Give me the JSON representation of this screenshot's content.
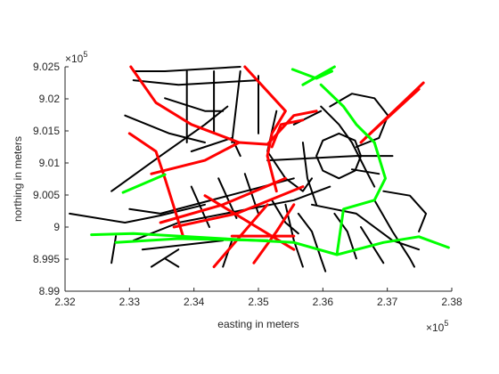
{
  "chart_data": {
    "type": "line",
    "xlabel": "easting in meters",
    "ylabel": "northing in meters",
    "x_exponent": {
      "base": "×10",
      "power": "5"
    },
    "y_exponent": {
      "base": "×10",
      "power": "5"
    },
    "xlim": [
      232000,
      238000
    ],
    "ylim": [
      899000,
      902500
    ],
    "xticks": [
      {
        "value": 232000,
        "label": "2.32"
      },
      {
        "value": 233000,
        "label": "2.33"
      },
      {
        "value": 234000,
        "label": "2.34"
      },
      {
        "value": 235000,
        "label": "2.35"
      },
      {
        "value": 236000,
        "label": "2.36"
      },
      {
        "value": 237000,
        "label": "2.37"
      },
      {
        "value": 238000,
        "label": "2.38"
      }
    ],
    "yticks": [
      {
        "value": 899000,
        "label": "8.99"
      },
      {
        "value": 899500,
        "label": "8.995"
      },
      {
        "value": 900000,
        "label": "9"
      },
      {
        "value": 900500,
        "label": "9.005"
      },
      {
        "value": 901000,
        "label": "9.01"
      },
      {
        "value": 901500,
        "label": "9.015"
      },
      {
        "value": 902000,
        "label": "9.02"
      },
      {
        "value": 902500,
        "label": "9.025"
      }
    ],
    "grid": false,
    "series": [
      {
        "color": "#000000",
        "x": [
          232070,
          232930,
          233480,
          234170
        ],
        "y": [
          900210,
          900070,
          900180,
          900350
        ]
      },
      {
        "color": "#000000",
        "x": [
          232720,
          233480,
          234170,
          234520
        ],
        "y": [
          900560,
          901110,
          901600,
          901880
        ]
      },
      {
        "color": "#000000",
        "x": [
          233550,
          234170,
          234450
        ],
        "y": [
          902010,
          901810,
          901810
        ]
      },
      {
        "color": "#000000",
        "x": [
          233060,
          233550,
          234720
        ],
        "y": [
          902430,
          902430,
          902500
        ]
      },
      {
        "color": "#000000",
        "x": [
          233060,
          233760,
          235000
        ],
        "y": [
          902290,
          902220,
          902290
        ]
      },
      {
        "color": "#000000",
        "x": [
          232930,
          233620,
          234170
        ],
        "y": [
          901740,
          901460,
          901320
        ]
      },
      {
        "color": "#000000",
        "x": [
          233890,
          233890
        ],
        "y": [
          902430,
          901320
        ]
      },
      {
        "color": "#000000",
        "x": [
          234310,
          234310
        ],
        "y": [
          902430,
          901460
        ]
      },
      {
        "color": "#000000",
        "x": [
          234720,
          234590
        ],
        "y": [
          902430,
          901320
        ]
      },
      {
        "color": "#000000",
        "x": [
          235000,
          235000
        ],
        "y": [
          902360,
          901460
        ]
      },
      {
        "color": "#000000",
        "x": [
          233060,
          233760,
          235550,
          236110
        ],
        "y": [
          899790,
          900070,
          900420,
          900630
        ]
      },
      {
        "color": "#000000",
        "x": [
          233200,
          234450
        ],
        "y": [
          899650,
          899790
        ]
      },
      {
        "color": "#000000",
        "x": [
          233340,
          233760
        ],
        "y": [
          899380,
          899650
        ]
      },
      {
        "color": "#000000",
        "x": [
          233000,
          233480,
          235550
        ],
        "y": [
          900280,
          900210,
          900760
        ]
      },
      {
        "color": "#000000",
        "x": [
          235280,
          235140,
          235420,
          235690,
          235830
        ],
        "y": [
          901810,
          901180,
          900760,
          900560,
          900760
        ]
      },
      {
        "color": "#000000",
        "x": [
          235140,
          236520,
          237080
        ],
        "y": [
          901040,
          901110,
          901110
        ]
      },
      {
        "color": "#000000",
        "x": [
          236590,
          236500,
          236250,
          236000,
          235900,
          236000,
          236250,
          236500,
          236590
        ],
        "y": [
          901110,
          901350,
          901460,
          901350,
          901110,
          900880,
          900760,
          900880,
          901110
        ]
      },
      {
        "color": "#000000",
        "x": [
          236110,
          236450,
          236800,
          237010,
          236870,
          236520
        ],
        "y": [
          901880,
          902080,
          902010,
          901740,
          901390,
          901250
        ]
      },
      {
        "color": "#000000",
        "x": [
          235830,
          236520,
          237080,
          237490
        ],
        "y": [
          900350,
          900210,
          899790,
          899650
        ]
      },
      {
        "color": "#000000",
        "x": [
          236800,
          237080,
          237350,
          237420
        ],
        "y": [
          900420,
          899930,
          899510,
          899380
        ]
      },
      {
        "color": "#000000",
        "x": [
          236940,
          237350,
          237600,
          237490
        ],
        "y": [
          900560,
          900490,
          900210,
          899930
        ]
      },
      {
        "color": "#000000",
        "x": [
          235620,
          235830,
          235970,
          236040
        ],
        "y": [
          900210,
          899930,
          899510,
          899310
        ]
      },
      {
        "color": "#000000",
        "x": [
          235420,
          235550,
          235690
        ],
        "y": [
          900350,
          899790,
          899380
        ]
      },
      {
        "color": "#000000",
        "x": [
          234590,
          234450
        ],
        "y": [
          899790,
          899380
        ]
      },
      {
        "color": "#000000",
        "x": [
          235970,
          236250,
          236450,
          236660,
          236800
        ],
        "y": [
          901880,
          901600,
          901320,
          900900,
          900630
        ]
      },
      {
        "color": "#000000",
        "x": [
          235550,
          235970
        ],
        "y": [
          901600,
          901810
        ]
      },
      {
        "color": "#000000",
        "x": [
          233960,
          234590,
          234720
        ],
        "y": [
          901180,
          901390,
          901110
        ]
      },
      {
        "color": "#000000",
        "x": [
          233550,
          233760
        ],
        "y": [
          899510,
          899380
        ]
      },
      {
        "color": "#000000",
        "x": [
          236590,
          236940
        ],
        "y": [
          900000,
          899440
        ]
      },
      {
        "color": "#000000",
        "x": [
          236180,
          236380,
          236520
        ],
        "y": [
          900210,
          899930,
          899510
        ]
      },
      {
        "color": "#000000",
        "x": [
          235690,
          235760,
          235900
        ],
        "y": [
          901320,
          900760,
          900350
        ]
      },
      {
        "color": "#000000",
        "x": [
          234380,
          234660
        ],
        "y": [
          900760,
          900140
        ]
      },
      {
        "color": "#000000",
        "x": [
          234790,
          235000
        ],
        "y": [
          900830,
          900210
        ]
      },
      {
        "color": "#000000",
        "x": [
          233960,
          234240
        ],
        "y": [
          900630,
          900000
        ]
      },
      {
        "color": "#000000",
        "x": [
          232790,
          232720
        ],
        "y": [
          899860,
          899440
        ]
      },
      {
        "color": "#000000",
        "x": [
          236450,
          236870
        ],
        "y": [
          900900,
          900830
        ]
      },
      {
        "color": "#000000",
        "x": [
          235210,
          235420,
          235620
        ],
        "y": [
          900420,
          900070,
          899900
        ]
      },
      {
        "color": "#ff0000",
        "x": [
          233000,
          233410,
          233550,
          233830
        ],
        "y": [
          901460,
          901180,
          900760,
          899860
        ]
      },
      {
        "color": "#ff0000",
        "x": [
          233020,
          233410,
          233960,
          234700
        ],
        "y": [
          902500,
          901940,
          901600,
          901320
        ]
      },
      {
        "color": "#ff0000",
        "x": [
          233340,
          234170,
          234700,
          235140,
          235550,
          235900
        ],
        "y": [
          900830,
          901040,
          901320,
          901290,
          901740,
          901810
        ]
      },
      {
        "color": "#ff0000",
        "x": [
          234790,
          235420,
          235210,
          235140,
          235280
        ],
        "y": [
          902500,
          901810,
          901460,
          901110,
          900560
        ]
      },
      {
        "color": "#ff0000",
        "x": [
          235210,
          235350,
          235690
        ],
        "y": [
          901250,
          901600,
          901670
        ]
      },
      {
        "color": "#ff0000",
        "x": [
          233480,
          234450,
          235420
        ],
        "y": [
          900070,
          900350,
          900760
        ]
      },
      {
        "color": "#ff0000",
        "x": [
          233690,
          234660,
          235690
        ],
        "y": [
          900000,
          900210,
          900630
        ]
      },
      {
        "color": "#ff0000",
        "x": [
          234310,
          234720,
          235140
        ],
        "y": [
          899380,
          899860,
          900350
        ]
      },
      {
        "color": "#ff0000",
        "x": [
          234930,
          235280,
          235550
        ],
        "y": [
          899440,
          899930,
          900350
        ]
      },
      {
        "color": "#ff0000",
        "x": [
          236590,
          237560
        ],
        "y": [
          901320,
          902250
        ]
      },
      {
        "color": "#ff0000",
        "x": [
          236660,
          237490
        ],
        "y": [
          901390,
          902150
        ]
      },
      {
        "color": "#ff0000",
        "x": [
          234590,
          235550
        ],
        "y": [
          899860,
          899860
        ]
      },
      {
        "color": "#ff0000",
        "x": [
          234170,
          235550
        ],
        "y": [
          900490,
          899650
        ]
      },
      {
        "color": "#00ff00",
        "x": [
          232410,
          233060,
          234450,
          235550,
          236220,
          236940,
          237490,
          237950
        ],
        "y": [
          899880,
          899900,
          899820,
          899760,
          899570,
          899760,
          899850,
          899680
        ]
      },
      {
        "color": "#00ff00",
        "x": [
          232900,
          233550
        ],
        "y": [
          900540,
          900820
        ]
      },
      {
        "color": "#00ff00",
        "x": [
          232790,
          233760,
          235140
        ],
        "y": [
          899760,
          899820,
          899790
        ]
      },
      {
        "color": "#00ff00",
        "x": [
          235530,
          235900,
          236140
        ],
        "y": [
          902460,
          902320,
          902430
        ]
      },
      {
        "color": "#00ff00",
        "x": [
          235690,
          236180
        ],
        "y": [
          902220,
          902500
        ]
      },
      {
        "color": "#00ff00",
        "x": [
          235970,
          236320,
          236520,
          236800,
          236970,
          236800,
          236320,
          236220
        ],
        "y": [
          902220,
          901880,
          901600,
          901320,
          900760,
          900420,
          900280,
          899580
        ]
      }
    ]
  }
}
